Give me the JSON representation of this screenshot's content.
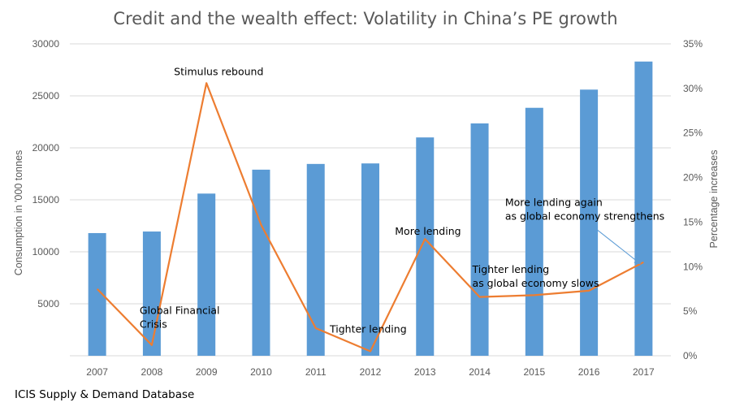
{
  "chart_data": {
    "type": "bar",
    "title": "Credit and the wealth effect: Volatility in China’s PE growth",
    "categories": [
      "2007",
      "2008",
      "2009",
      "2010",
      "2011",
      "2012",
      "2013",
      "2014",
      "2015",
      "2016",
      "2017"
    ],
    "series": [
      {
        "type": "bar",
        "axis": "left",
        "color": "#5B9BD5",
        "values": [
          11800,
          11950,
          15600,
          17900,
          18450,
          18500,
          21000,
          22350,
          23850,
          25600,
          28300
        ]
      },
      {
        "type": "line",
        "axis": "right",
        "color": "#ED7D31",
        "values": [
          7.5,
          1.2,
          30.6,
          14.7,
          3.1,
          0.5,
          13.1,
          6.6,
          6.8,
          7.3,
          10.5
        ]
      }
    ],
    "ylabel": "Consumption in '000 tonnes",
    "y2label": "Percentage increases",
    "ylim": [
      0,
      30000
    ],
    "y2lim": [
      0,
      35
    ],
    "yticks": [
      "5000",
      "10000",
      "15000",
      "20000",
      "25000",
      "30000"
    ],
    "y2ticks": [
      "0%",
      "5%",
      "10%",
      "15%",
      "20%",
      "25%",
      "30%",
      "35%"
    ],
    "grid": true,
    "annotations": [
      {
        "lines": [
          "Stimulus rebound"
        ],
        "x": "2009",
        "y": 31.5
      },
      {
        "lines": [
          "Global Financial",
          "Crisis"
        ],
        "x": "2008",
        "y": 4.7
      },
      {
        "lines": [
          "Tighter lending"
        ],
        "x": "2012",
        "y": 2.6
      },
      {
        "lines": [
          "More lending"
        ],
        "x": "2013",
        "y": 13.6
      },
      {
        "lines": [
          "Tighter lending",
          "as global economy slows"
        ],
        "x": "2014",
        "y": 9.3
      },
      {
        "lines": [
          "More lending again",
          "as global economy strengthens"
        ],
        "x": "2015",
        "y": 16.8,
        "arrow_to": {
          "x": "2017",
          "y": 10.5
        }
      }
    ]
  },
  "footer": {
    "source": "ICIS Supply & Demand Database"
  }
}
